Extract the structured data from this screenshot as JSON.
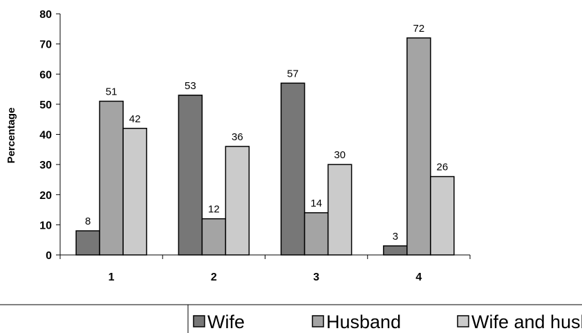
{
  "chart_data": {
    "type": "bar",
    "title": "",
    "xlabel": "",
    "ylabel": "Percentage",
    "ylim": [
      0,
      80
    ],
    "yticks": [
      0,
      10,
      20,
      30,
      40,
      50,
      60,
      70,
      80
    ],
    "grid": false,
    "legend_position": "bottom",
    "categories": [
      "1",
      "2",
      "3",
      "4"
    ],
    "series": [
      {
        "name": "Wife",
        "color": "#777777",
        "values": [
          8,
          53,
          57,
          3
        ]
      },
      {
        "name": "Husband",
        "color": "#a4a4a4",
        "values": [
          51,
          12,
          14,
          72
        ]
      },
      {
        "name": "Wife and husband",
        "color": "#cbcbcb",
        "values": [
          42,
          36,
          30,
          26
        ]
      }
    ]
  }
}
